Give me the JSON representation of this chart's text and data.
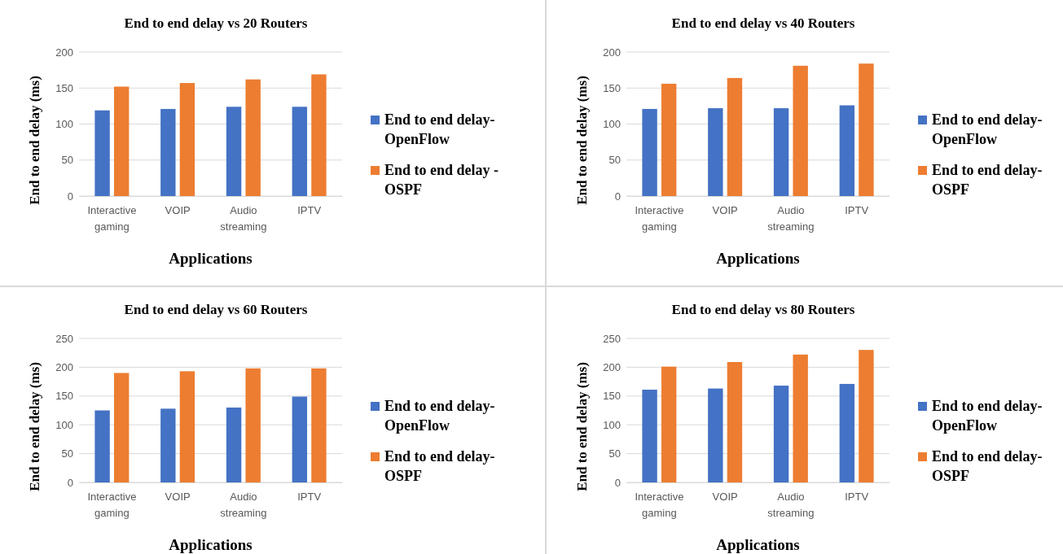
{
  "chart_data": [
    {
      "type": "bar",
      "title": "End to end delay vs 20 Routers",
      "xlabel": "Applications",
      "ylabel": "End to end delay (ms)",
      "categories": [
        "Interactive gaming",
        "VOIP",
        "Audio streaming",
        "IPTV"
      ],
      "ylim": [
        0,
        200
      ],
      "yticks": [
        0,
        50,
        100,
        150,
        200
      ],
      "grid": "y",
      "legend": "right",
      "series": [
        {
          "name": "End to end delay-OpenFlow",
          "color": "#4472c4",
          "values": [
            119,
            121,
            124,
            124
          ]
        },
        {
          "name": "End to end delay -OSPF",
          "color": "#ed7d31",
          "values": [
            152,
            157,
            162,
            169
          ]
        }
      ]
    },
    {
      "type": "bar",
      "title": "End to end delay vs 40 Routers",
      "xlabel": "Applications",
      "ylabel": "End to end delay (ms)",
      "categories": [
        "Interactive gaming",
        "VOIP",
        "Audio streaming",
        "IPTV"
      ],
      "ylim": [
        0,
        200
      ],
      "yticks": [
        0,
        50,
        100,
        150,
        200
      ],
      "grid": "y",
      "legend": "right",
      "series": [
        {
          "name": "End to end delay-OpenFlow",
          "color": "#4472c4",
          "values": [
            121,
            122,
            122,
            126
          ]
        },
        {
          "name": "End to end delay-OSPF",
          "color": "#ed7d31",
          "values": [
            156,
            164,
            181,
            184
          ]
        }
      ]
    },
    {
      "type": "bar",
      "title": "End to end delay vs 60 Routers",
      "xlabel": "Applications",
      "ylabel": "End to end delay (ms)",
      "categories": [
        "Interactive gaming",
        "VOIP",
        "Audio streaming",
        "IPTV"
      ],
      "ylim": [
        0,
        250
      ],
      "yticks": [
        0,
        50,
        100,
        150,
        200,
        250
      ],
      "grid": "y",
      "legend": "right",
      "series": [
        {
          "name": "End to end delay-OpenFlow",
          "color": "#4472c4",
          "values": [
            125,
            128,
            130,
            149
          ]
        },
        {
          "name": "End to end delay-OSPF",
          "color": "#ed7d31",
          "values": [
            190,
            193,
            198,
            198
          ]
        }
      ]
    },
    {
      "type": "bar",
      "title": "End to end delay vs 80 Routers",
      "xlabel": "Applications",
      "ylabel": "End to end delay (ms)",
      "categories": [
        "Interactive gaming",
        "VOIP",
        "Audio streaming",
        "IPTV"
      ],
      "ylim": [
        0,
        250
      ],
      "yticks": [
        0,
        50,
        100,
        150,
        200,
        250
      ],
      "grid": "y",
      "legend": "right",
      "series": [
        {
          "name": "End to end delay-OpenFlow",
          "color": "#4472c4",
          "values": [
            161,
            163,
            168,
            171
          ]
        },
        {
          "name": "End to end delay-OSPF",
          "color": "#ed7d31",
          "values": [
            201,
            209,
            222,
            230
          ]
        }
      ]
    }
  ]
}
